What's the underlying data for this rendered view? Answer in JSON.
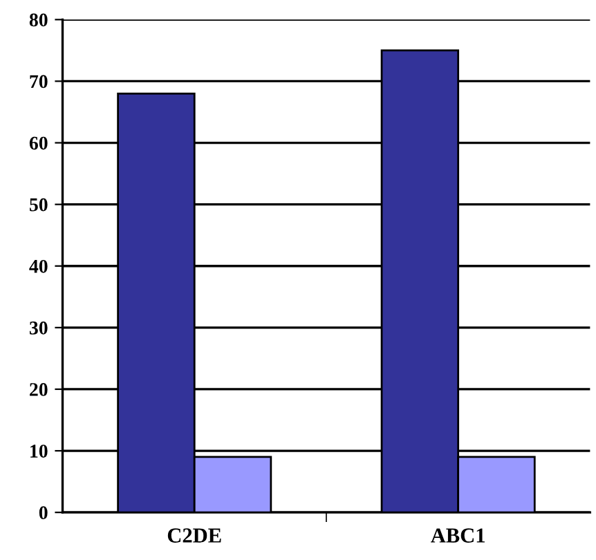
{
  "chart_data": {
    "type": "bar",
    "categories": [
      "C2DE",
      "ABC1"
    ],
    "series": [
      {
        "color": "#333399",
        "values": [
          68,
          75
        ]
      },
      {
        "color": "#9999ff",
        "values": [
          9,
          9
        ]
      }
    ],
    "ylim": [
      0,
      80
    ],
    "yticks": [
      0,
      10,
      20,
      30,
      40,
      50,
      60,
      70,
      80
    ],
    "grid": "y"
  }
}
